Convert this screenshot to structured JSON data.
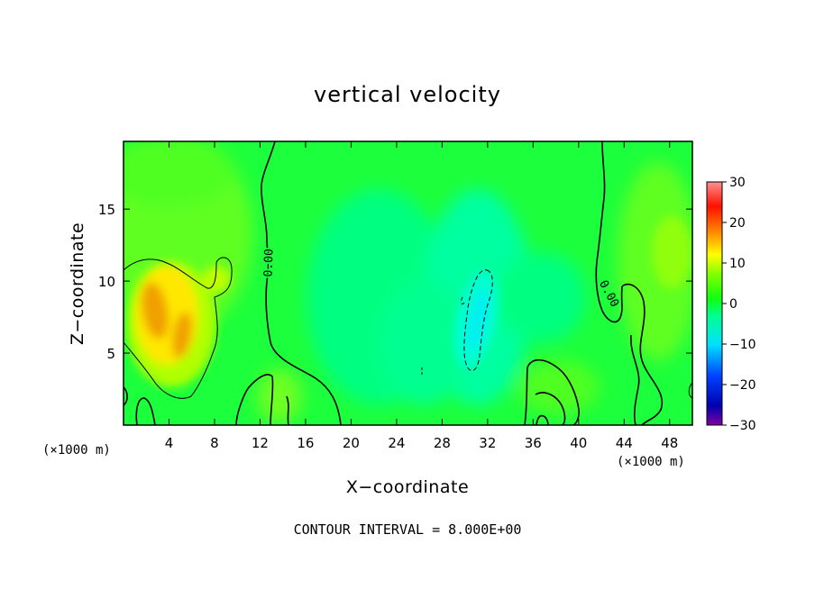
{
  "chart_data": {
    "type": "heatmap",
    "title": "vertical velocity",
    "xlabel": "X−coordinate",
    "ylabel": "Z−coordinate",
    "x_unit_left": "(×1000 m)",
    "x_unit_right": "(×1000 m)",
    "footer": "CONTOUR INTERVAL = 8.000E+00",
    "xlim": [
      0,
      50
    ],
    "ylim": [
      0,
      19.7
    ],
    "x_ticks": [
      4,
      8,
      12,
      16,
      20,
      24,
      28,
      32,
      36,
      40,
      44,
      48
    ],
    "y_ticks": [
      5,
      10,
      15
    ],
    "colorbar": {
      "range": [
        -30,
        30
      ],
      "ticks": [
        30,
        20,
        10,
        0,
        -10,
        -20,
        -30
      ],
      "tick_labels": [
        "30",
        "20",
        "10",
        "0",
        "−10",
        "−20",
        "−30"
      ]
    },
    "contour_labels": [
      "0.00",
      "0.00"
    ],
    "features": [
      {
        "kind": "updraft",
        "x": 4.5,
        "z": 8,
        "value": 14
      },
      {
        "kind": "updraft",
        "x": 5.5,
        "z": 6.5,
        "value": 12
      },
      {
        "kind": "downdraft",
        "x": 30.8,
        "z": 7.5,
        "value": -8
      },
      {
        "kind": "weak_updraft",
        "x": 46.5,
        "z": 11,
        "value": 4
      },
      {
        "kind": "weak_updraft",
        "x": 14,
        "z": 3,
        "value": 4
      }
    ]
  },
  "colors": {
    "background": "#00ff40",
    "positive_contour": "#000000",
    "negative_contour": "#000000"
  }
}
